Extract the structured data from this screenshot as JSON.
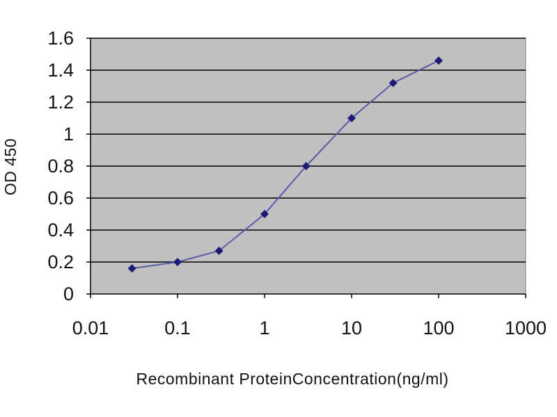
{
  "chart_data": {
    "type": "line",
    "xlabel": "Recombinant ProteinConcentration(ng/ml)",
    "ylabel": "OD 450",
    "xscale": "log",
    "xlim": [
      0.01,
      1000
    ],
    "ylim": [
      0,
      1.6
    ],
    "x_ticks": [
      "0.01",
      "0.1",
      "1",
      "10",
      "100",
      "1000"
    ],
    "y_ticks": [
      "0",
      "0.2",
      "0.4",
      "0.6",
      "0.8",
      "1",
      "1.2",
      "1.4",
      "1.6"
    ],
    "grid": "horizontal",
    "series": [
      {
        "x": [
          0.03,
          0.1,
          0.3,
          1,
          3,
          10,
          30,
          100
        ],
        "y": [
          0.16,
          0.2,
          0.27,
          0.5,
          0.8,
          1.1,
          1.32,
          1.46
        ]
      }
    ],
    "colors": {
      "plot_background": "#c0c0c0",
      "line": "#5a5aaa",
      "marker": "#1c1c78",
      "gridline": "#000000"
    }
  }
}
